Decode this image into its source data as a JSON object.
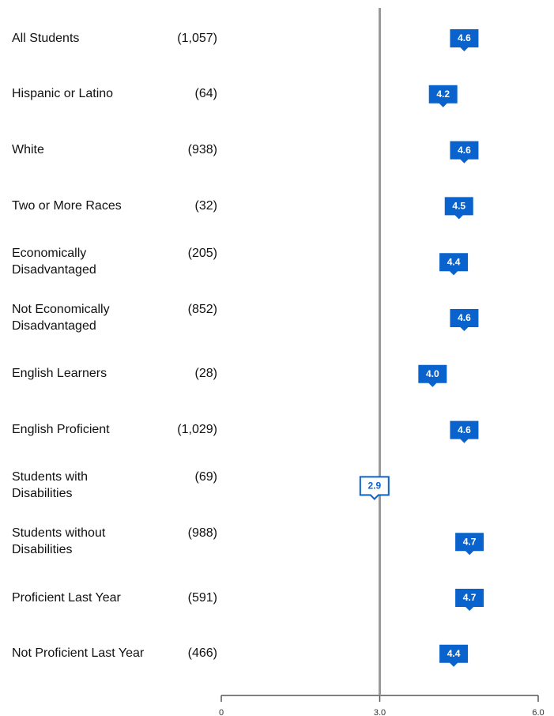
{
  "chart_data": {
    "type": "marker",
    "categories": [
      "All Students",
      "Hispanic or Latino",
      "White",
      "Two or More Races",
      "Economically\nDisadvantaged",
      "Not Economically\nDisadvantaged",
      "English Learners",
      "English Proficient",
      "Students with\nDisabilities",
      "Students without\nDisabilities",
      "Proficient Last Year",
      "Not Proficient Last Year"
    ],
    "n_labels": [
      "(1,057)",
      "(64)",
      "(938)",
      "(32)",
      "(205)",
      "(852)",
      "(28)",
      "(1,029)",
      "(69)",
      "(988)",
      "(591)",
      "(466)"
    ],
    "values": [
      4.6,
      4.2,
      4.6,
      4.5,
      4.4,
      4.6,
      4.0,
      4.6,
      2.9,
      4.7,
      4.7,
      4.4
    ],
    "value_labels": [
      "4.6",
      "4.2",
      "4.6",
      "4.5",
      "4.4",
      "4.6",
      "4.0",
      "4.6",
      "2.9",
      "4.7",
      "4.7",
      "4.4"
    ],
    "xlim": [
      0,
      6
    ],
    "xticks": [
      0,
      {
        "value": 3,
        "label": "3.0"
      },
      {
        "value": 6,
        "label": "6.0"
      }
    ],
    "reference_line": 3,
    "color": "#0a63cc",
    "below_reference_fill": "#ffffff"
  }
}
